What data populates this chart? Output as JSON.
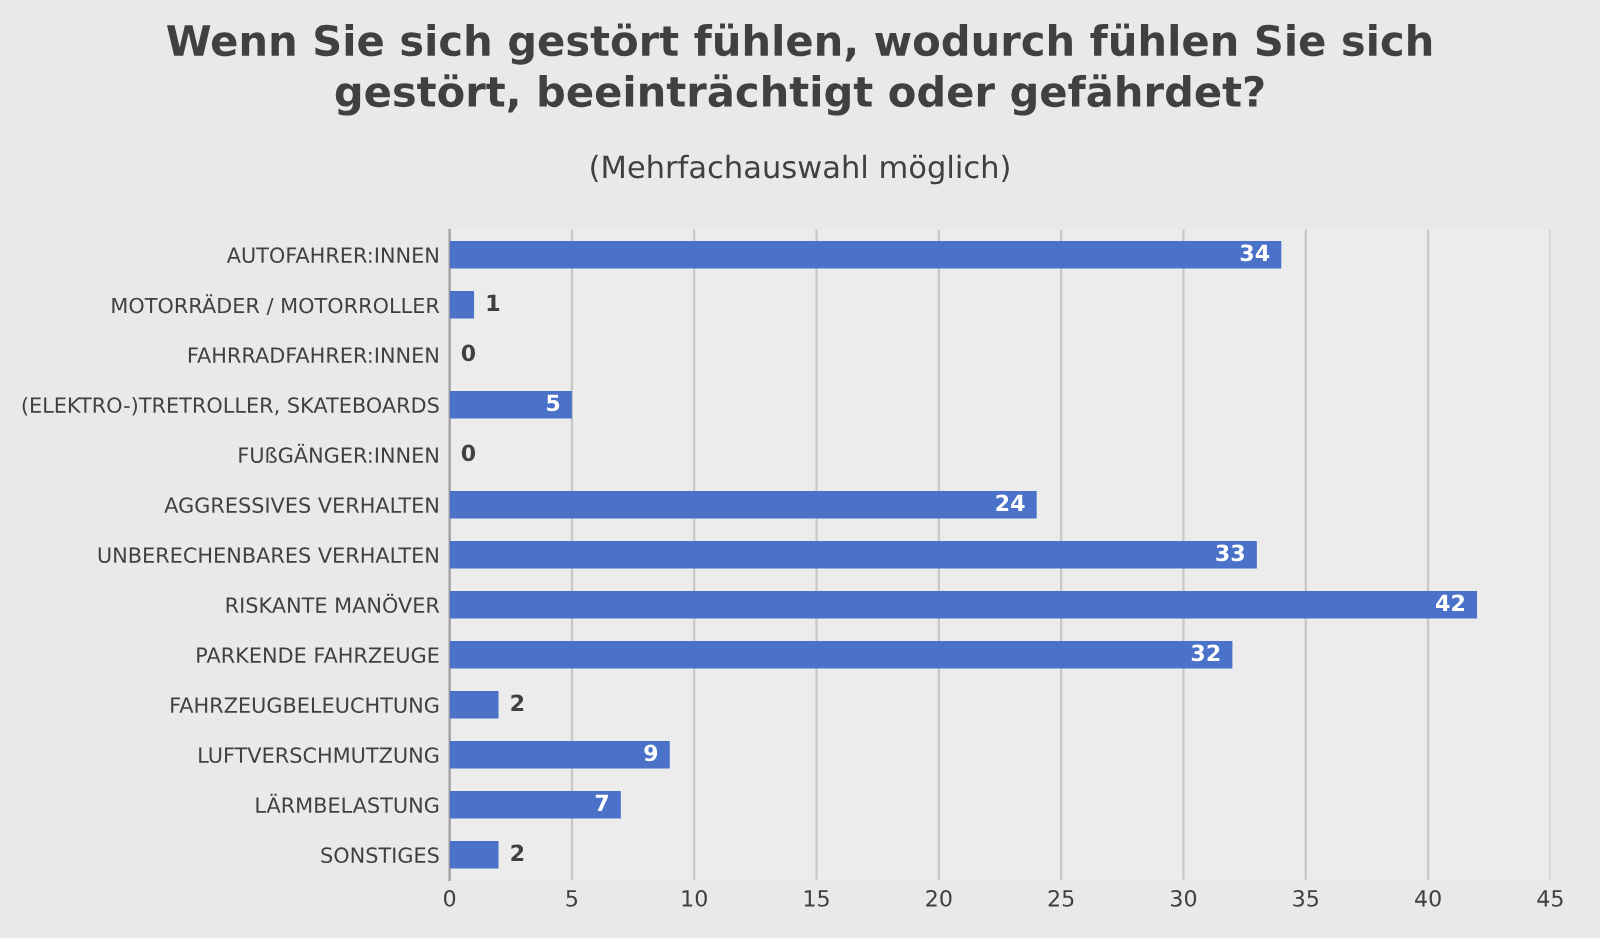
{
  "chart_data": {
    "type": "bar",
    "orientation": "horizontal",
    "title": "Wenn Sie sich gestört fühlen, wodurch fühlen Sie sich\ngestört, beeinträchtigt oder gefährdet?",
    "subtitle": "(Mehrfachauswahl möglich)",
    "categories": [
      "AUTOFAHRER:INNEN",
      "MOTORRÄDER / MOTORROLLER",
      "FAHRRADFAHRER:INNEN",
      "(ELEKTRO-)TRETROLLER, SKATEBOARDS",
      "FUßGÄNGER:INNEN",
      "AGGRESSIVES VERHALTEN",
      "UNBERECHENBARES VERHALTEN",
      "RISKANTE MANÖVER",
      "PARKENDE FAHRZEUGE",
      "FAHRZEUGBELEUCHTUNG",
      "LUFTVERSCHMUTZUNG",
      "LÄRMBELASTUNG",
      "SONSTIGES"
    ],
    "values": [
      34,
      1,
      0,
      5,
      0,
      24,
      33,
      42,
      32,
      2,
      9,
      7,
      2
    ],
    "color": "#4a72c8",
    "xlim": [
      0,
      45
    ],
    "xticks": [
      0,
      5,
      10,
      15,
      20,
      25,
      30,
      35,
      40,
      45
    ],
    "grid": "x",
    "data_labels": true,
    "legend": false
  }
}
